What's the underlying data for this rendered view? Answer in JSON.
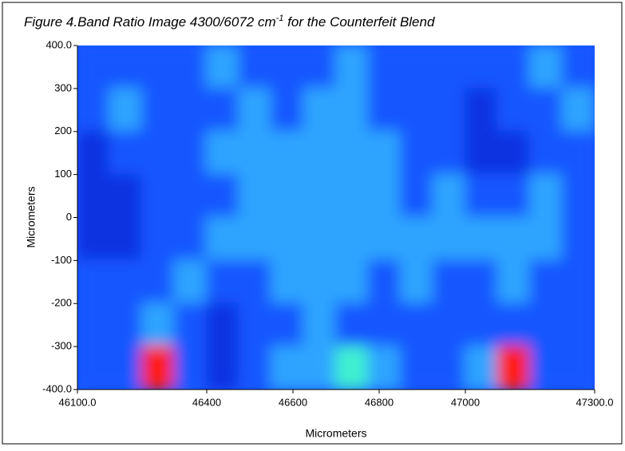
{
  "chart_data": {
    "type": "heatmap",
    "title": [
      "Figure 4.Band Ratio Image 4300/6072 cm",
      "-1",
      " for the Counterfeit Blend"
    ],
    "xlabel": "Micrometers",
    "ylabel": "Micrometers",
    "xlim": [
      46100,
      47300
    ],
    "ylim": [
      -400,
      400
    ],
    "xticks": [
      {
        "value": 46100,
        "label": "46100.0"
      },
      46400,
      46600,
      46800,
      47000,
      {
        "value": 47300,
        "label": "47300.0"
      }
    ],
    "yticks": [
      {
        "value": 400,
        "label": "400.0"
      },
      300,
      200,
      100,
      0,
      -100,
      -200,
      -300,
      {
        "value": -400,
        "label": "-400.0"
      }
    ],
    "colormap": [
      "#0a30e0",
      "#1656ff",
      "#2ea4ff",
      "#40f0d0",
      "#ff1a00"
    ],
    "z": [
      [
        1,
        1,
        1,
        1,
        2,
        1,
        1,
        1,
        2,
        1,
        1,
        1,
        1,
        1,
        2,
        1
      ],
      [
        1,
        2,
        1,
        1,
        1,
        2,
        1,
        2,
        2,
        1,
        1,
        1,
        0,
        1,
        1,
        2
      ],
      [
        0,
        1,
        1,
        1,
        2,
        2,
        2,
        2,
        2,
        2,
        1,
        1,
        0,
        0,
        1,
        1
      ],
      [
        0,
        0,
        1,
        1,
        1,
        2,
        2,
        2,
        2,
        2,
        1,
        2,
        1,
        1,
        2,
        1
      ],
      [
        0,
        0,
        1,
        1,
        2,
        2,
        2,
        2,
        2,
        2,
        2,
        2,
        2,
        2,
        2,
        1
      ],
      [
        1,
        1,
        1,
        2,
        1,
        1,
        2,
        2,
        2,
        1,
        2,
        1,
        1,
        2,
        1,
        1
      ],
      [
        1,
        1,
        2,
        1,
        0,
        1,
        1,
        2,
        1,
        1,
        1,
        1,
        1,
        1,
        1,
        1
      ],
      [
        1,
        1,
        4,
        1,
        0,
        1,
        2,
        2,
        3,
        2,
        1,
        1,
        2,
        4,
        1,
        1
      ]
    ]
  }
}
